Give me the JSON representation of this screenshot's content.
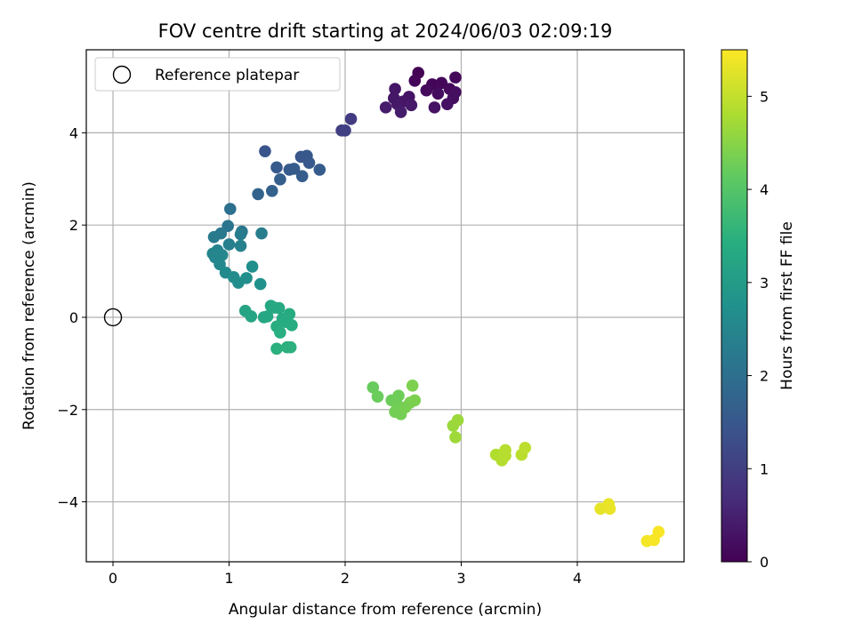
{
  "chart_data": {
    "type": "scatter",
    "title": "FOV centre drift starting at 2024/06/03 02:09:19",
    "xlabel": "Angular distance from reference (arcmin)",
    "ylabel": "Rotation from reference (arcmin)",
    "xlim": [
      -0.23,
      4.92
    ],
    "ylim": [
      -5.3,
      5.8
    ],
    "xticks": [
      0,
      1,
      2,
      3,
      4
    ],
    "yticks": [
      -4,
      -2,
      0,
      2,
      4
    ],
    "grid": true,
    "legend": {
      "placement": "top-left",
      "entries": [
        "Reference platepar"
      ]
    },
    "reference_point": {
      "x": 0,
      "y": 0,
      "label": "Reference platepar"
    },
    "colorbar": {
      "label": "Hours from first FF file",
      "colormap": "viridis",
      "range": [
        0,
        5.5
      ],
      "ticks": [
        0,
        1,
        2,
        3,
        4,
        5
      ]
    },
    "points": [
      {
        "x": 2.63,
        "y": 5.3,
        "c": 0.02
      },
      {
        "x": 2.6,
        "y": 5.13,
        "c": 0.05
      },
      {
        "x": 2.75,
        "y": 5.05,
        "c": 0.08
      },
      {
        "x": 2.83,
        "y": 5.08,
        "c": 0.1
      },
      {
        "x": 2.95,
        "y": 5.2,
        "c": 0.12
      },
      {
        "x": 2.9,
        "y": 4.95,
        "c": 0.14
      },
      {
        "x": 2.7,
        "y": 4.92,
        "c": 0.16
      },
      {
        "x": 2.8,
        "y": 4.85,
        "c": 0.18
      },
      {
        "x": 2.95,
        "y": 4.88,
        "c": 0.2
      },
      {
        "x": 2.93,
        "y": 4.75,
        "c": 0.22
      },
      {
        "x": 2.88,
        "y": 4.62,
        "c": 0.24
      },
      {
        "x": 2.77,
        "y": 4.55,
        "c": 0.26
      },
      {
        "x": 2.55,
        "y": 4.78,
        "c": 0.28
      },
      {
        "x": 2.5,
        "y": 4.68,
        "c": 0.3
      },
      {
        "x": 2.43,
        "y": 4.95,
        "c": 0.32
      },
      {
        "x": 2.42,
        "y": 4.75,
        "c": 0.34
      },
      {
        "x": 2.45,
        "y": 4.62,
        "c": 0.36
      },
      {
        "x": 2.57,
        "y": 4.6,
        "c": 0.38
      },
      {
        "x": 2.35,
        "y": 4.55,
        "c": 0.4
      },
      {
        "x": 2.48,
        "y": 4.45,
        "c": 0.42
      },
      {
        "x": 2.05,
        "y": 4.3,
        "c": 0.95
      },
      {
        "x": 1.97,
        "y": 4.05,
        "c": 1.0
      },
      {
        "x": 2.0,
        "y": 4.05,
        "c": 1.02
      },
      {
        "x": 1.31,
        "y": 3.6,
        "c": 1.45
      },
      {
        "x": 1.62,
        "y": 3.48,
        "c": 1.48
      },
      {
        "x": 1.67,
        "y": 3.5,
        "c": 1.5
      },
      {
        "x": 1.69,
        "y": 3.35,
        "c": 1.52
      },
      {
        "x": 1.41,
        "y": 3.25,
        "c": 1.55
      },
      {
        "x": 1.52,
        "y": 3.2,
        "c": 1.57
      },
      {
        "x": 1.56,
        "y": 3.22,
        "c": 1.58
      },
      {
        "x": 1.78,
        "y": 3.2,
        "c": 1.6
      },
      {
        "x": 1.63,
        "y": 3.06,
        "c": 1.62
      },
      {
        "x": 1.44,
        "y": 2.99,
        "c": 1.65
      },
      {
        "x": 1.37,
        "y": 2.74,
        "c": 1.7
      },
      {
        "x": 1.25,
        "y": 2.67,
        "c": 1.75
      },
      {
        "x": 1.01,
        "y": 2.35,
        "c": 2.0
      },
      {
        "x": 0.99,
        "y": 1.98,
        "c": 2.1
      },
      {
        "x": 1.11,
        "y": 1.86,
        "c": 2.15
      },
      {
        "x": 0.93,
        "y": 1.82,
        "c": 2.2
      },
      {
        "x": 0.87,
        "y": 1.74,
        "c": 2.25
      },
      {
        "x": 1.1,
        "y": 1.8,
        "c": 2.28
      },
      {
        "x": 1.28,
        "y": 1.82,
        "c": 2.3
      },
      {
        "x": 1.0,
        "y": 1.58,
        "c": 2.35
      },
      {
        "x": 1.1,
        "y": 1.55,
        "c": 2.4
      },
      {
        "x": 0.9,
        "y": 1.45,
        "c": 2.45
      },
      {
        "x": 0.86,
        "y": 1.38,
        "c": 2.48
      },
      {
        "x": 0.88,
        "y": 1.3,
        "c": 2.5
      },
      {
        "x": 0.94,
        "y": 1.35,
        "c": 2.52
      },
      {
        "x": 0.92,
        "y": 1.15,
        "c": 2.55
      },
      {
        "x": 0.97,
        "y": 0.97,
        "c": 2.6
      },
      {
        "x": 1.04,
        "y": 0.87,
        "c": 2.65
      },
      {
        "x": 1.08,
        "y": 0.75,
        "c": 2.68
      },
      {
        "x": 1.15,
        "y": 0.85,
        "c": 2.7
      },
      {
        "x": 1.2,
        "y": 1.1,
        "c": 2.72
      },
      {
        "x": 1.27,
        "y": 0.72,
        "c": 2.75
      },
      {
        "x": 1.14,
        "y": 0.14,
        "c": 3.2
      },
      {
        "x": 1.19,
        "y": 0.02,
        "c": 3.22
      },
      {
        "x": 1.3,
        "y": 0.0,
        "c": 3.24
      },
      {
        "x": 1.33,
        "y": 0.02,
        "c": 3.26
      },
      {
        "x": 1.36,
        "y": 0.25,
        "c": 3.28
      },
      {
        "x": 1.39,
        "y": 0.21,
        "c": 3.3
      },
      {
        "x": 1.43,
        "y": 0.2,
        "c": 3.32
      },
      {
        "x": 1.46,
        "y": -0.03,
        "c": 3.34
      },
      {
        "x": 1.52,
        "y": 0.07,
        "c": 3.36
      },
      {
        "x": 1.49,
        "y": -0.1,
        "c": 3.38
      },
      {
        "x": 1.54,
        "y": -0.17,
        "c": 3.4
      },
      {
        "x": 1.41,
        "y": -0.2,
        "c": 3.42
      },
      {
        "x": 1.44,
        "y": -0.33,
        "c": 3.44
      },
      {
        "x": 1.41,
        "y": -0.68,
        "c": 3.46
      },
      {
        "x": 1.5,
        "y": -0.65,
        "c": 3.48
      },
      {
        "x": 1.53,
        "y": -0.65,
        "c": 3.5
      },
      {
        "x": 2.24,
        "y": -1.52,
        "c": 4.2
      },
      {
        "x": 2.28,
        "y": -1.72,
        "c": 4.22
      },
      {
        "x": 2.4,
        "y": -1.8,
        "c": 4.24
      },
      {
        "x": 2.46,
        "y": -1.7,
        "c": 4.26
      },
      {
        "x": 2.45,
        "y": -1.9,
        "c": 4.28
      },
      {
        "x": 2.43,
        "y": -2.05,
        "c": 4.3
      },
      {
        "x": 2.48,
        "y": -2.1,
        "c": 4.32
      },
      {
        "x": 2.52,
        "y": -1.95,
        "c": 4.34
      },
      {
        "x": 2.56,
        "y": -1.85,
        "c": 4.36
      },
      {
        "x": 2.6,
        "y": -1.8,
        "c": 4.38
      },
      {
        "x": 2.58,
        "y": -1.48,
        "c": 4.4
      },
      {
        "x": 2.93,
        "y": -2.35,
        "c": 4.65
      },
      {
        "x": 2.97,
        "y": -2.23,
        "c": 4.67
      },
      {
        "x": 2.95,
        "y": -2.6,
        "c": 4.69
      },
      {
        "x": 3.3,
        "y": -2.98,
        "c": 4.85
      },
      {
        "x": 3.35,
        "y": -3.1,
        "c": 4.87
      },
      {
        "x": 3.38,
        "y": -2.88,
        "c": 4.89
      },
      {
        "x": 3.38,
        "y": -3.0,
        "c": 4.9
      },
      {
        "x": 3.52,
        "y": -2.98,
        "c": 4.92
      },
      {
        "x": 3.55,
        "y": -2.83,
        "c": 4.94
      },
      {
        "x": 4.2,
        "y": -4.15,
        "c": 5.3
      },
      {
        "x": 4.27,
        "y": -4.05,
        "c": 5.32
      },
      {
        "x": 4.28,
        "y": -4.15,
        "c": 5.34
      },
      {
        "x": 4.6,
        "y": -4.85,
        "c": 5.42
      },
      {
        "x": 4.66,
        "y": -4.83,
        "c": 5.44
      },
      {
        "x": 4.7,
        "y": -4.65,
        "c": 5.46
      }
    ]
  }
}
